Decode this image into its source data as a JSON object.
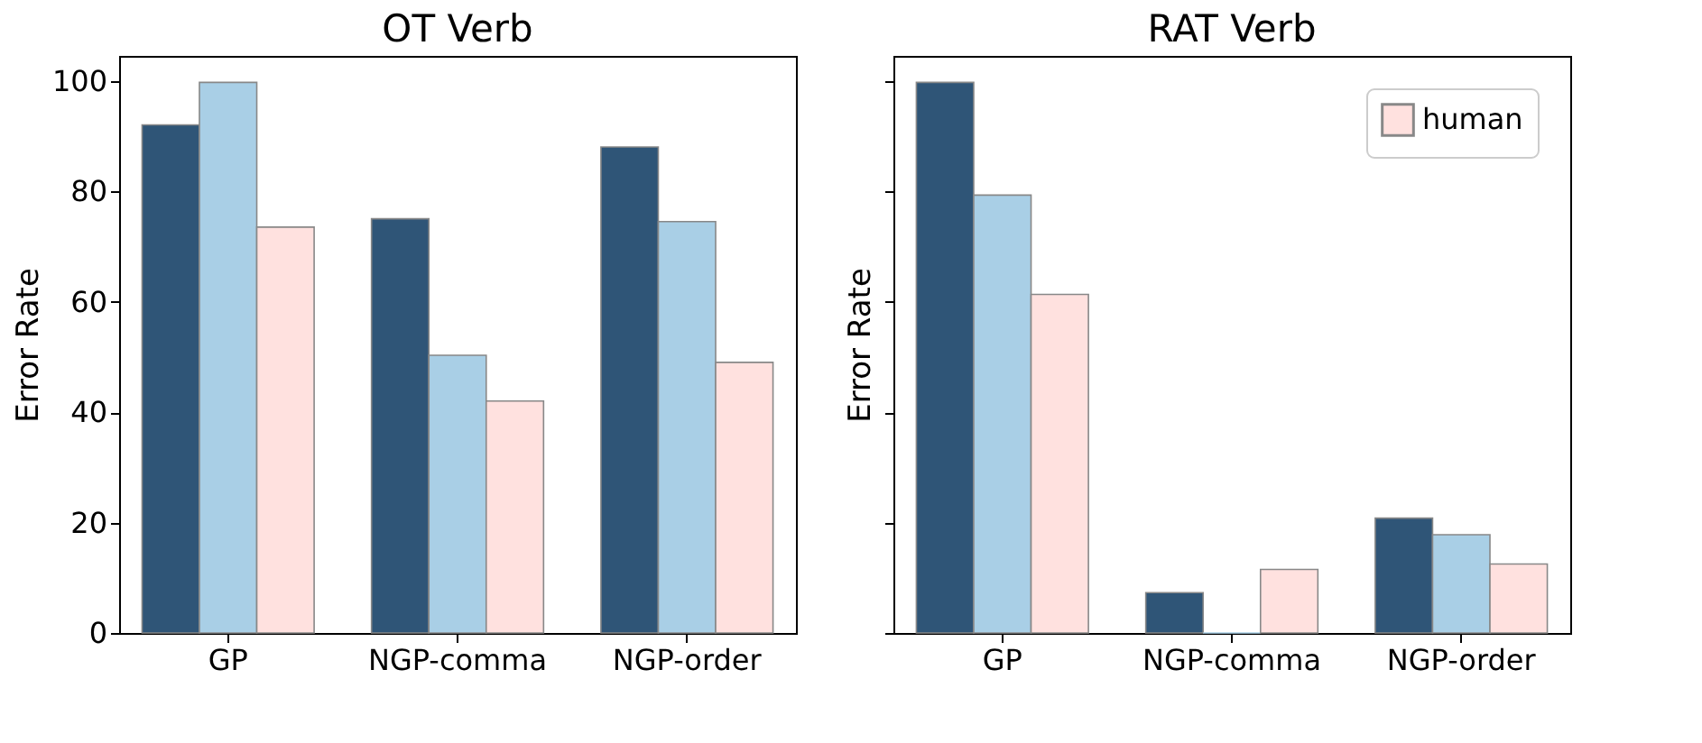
{
  "chart_data": [
    {
      "type": "bar",
      "title": "OT Verb",
      "ylabel": "Error Rate",
      "categories": [
        "GP",
        "NGP-comma",
        "NGP-order"
      ],
      "series": [
        {
          "name": null,
          "color": "#2f5577",
          "values": [
            92,
            75,
            88
          ]
        },
        {
          "name": null,
          "color": "#a9cfe6",
          "values": [
            99.7,
            50.3,
            74.5
          ]
        },
        {
          "name": null,
          "color": "#ffe1df",
          "values": [
            73.5,
            42,
            49
          ]
        }
      ],
      "ylim": [
        0,
        104.5
      ],
      "yticks": [
        0,
        20,
        40,
        60,
        80,
        100
      ],
      "grid": false
    },
    {
      "type": "bar",
      "title": "RAT Verb",
      "ylabel": "Error Rate",
      "categories": [
        "GP",
        "NGP-comma",
        "NGP-order"
      ],
      "series": [
        {
          "name": null,
          "color": "#2f5577",
          "values": [
            99.7,
            7.3,
            20.8
          ]
        },
        {
          "name": null,
          "color": "#a9cfe6",
          "values": [
            79.3,
            0,
            17.8
          ]
        },
        {
          "name": "human",
          "color": "#ffe1df",
          "values": [
            61.3,
            11.5,
            12.5
          ]
        }
      ],
      "ylim": [
        0,
        104.5
      ],
      "yticks": [
        0,
        20,
        40,
        60,
        80,
        100
      ],
      "grid": false,
      "legend": "top right",
      "tick_labels": "x"
    }
  ]
}
